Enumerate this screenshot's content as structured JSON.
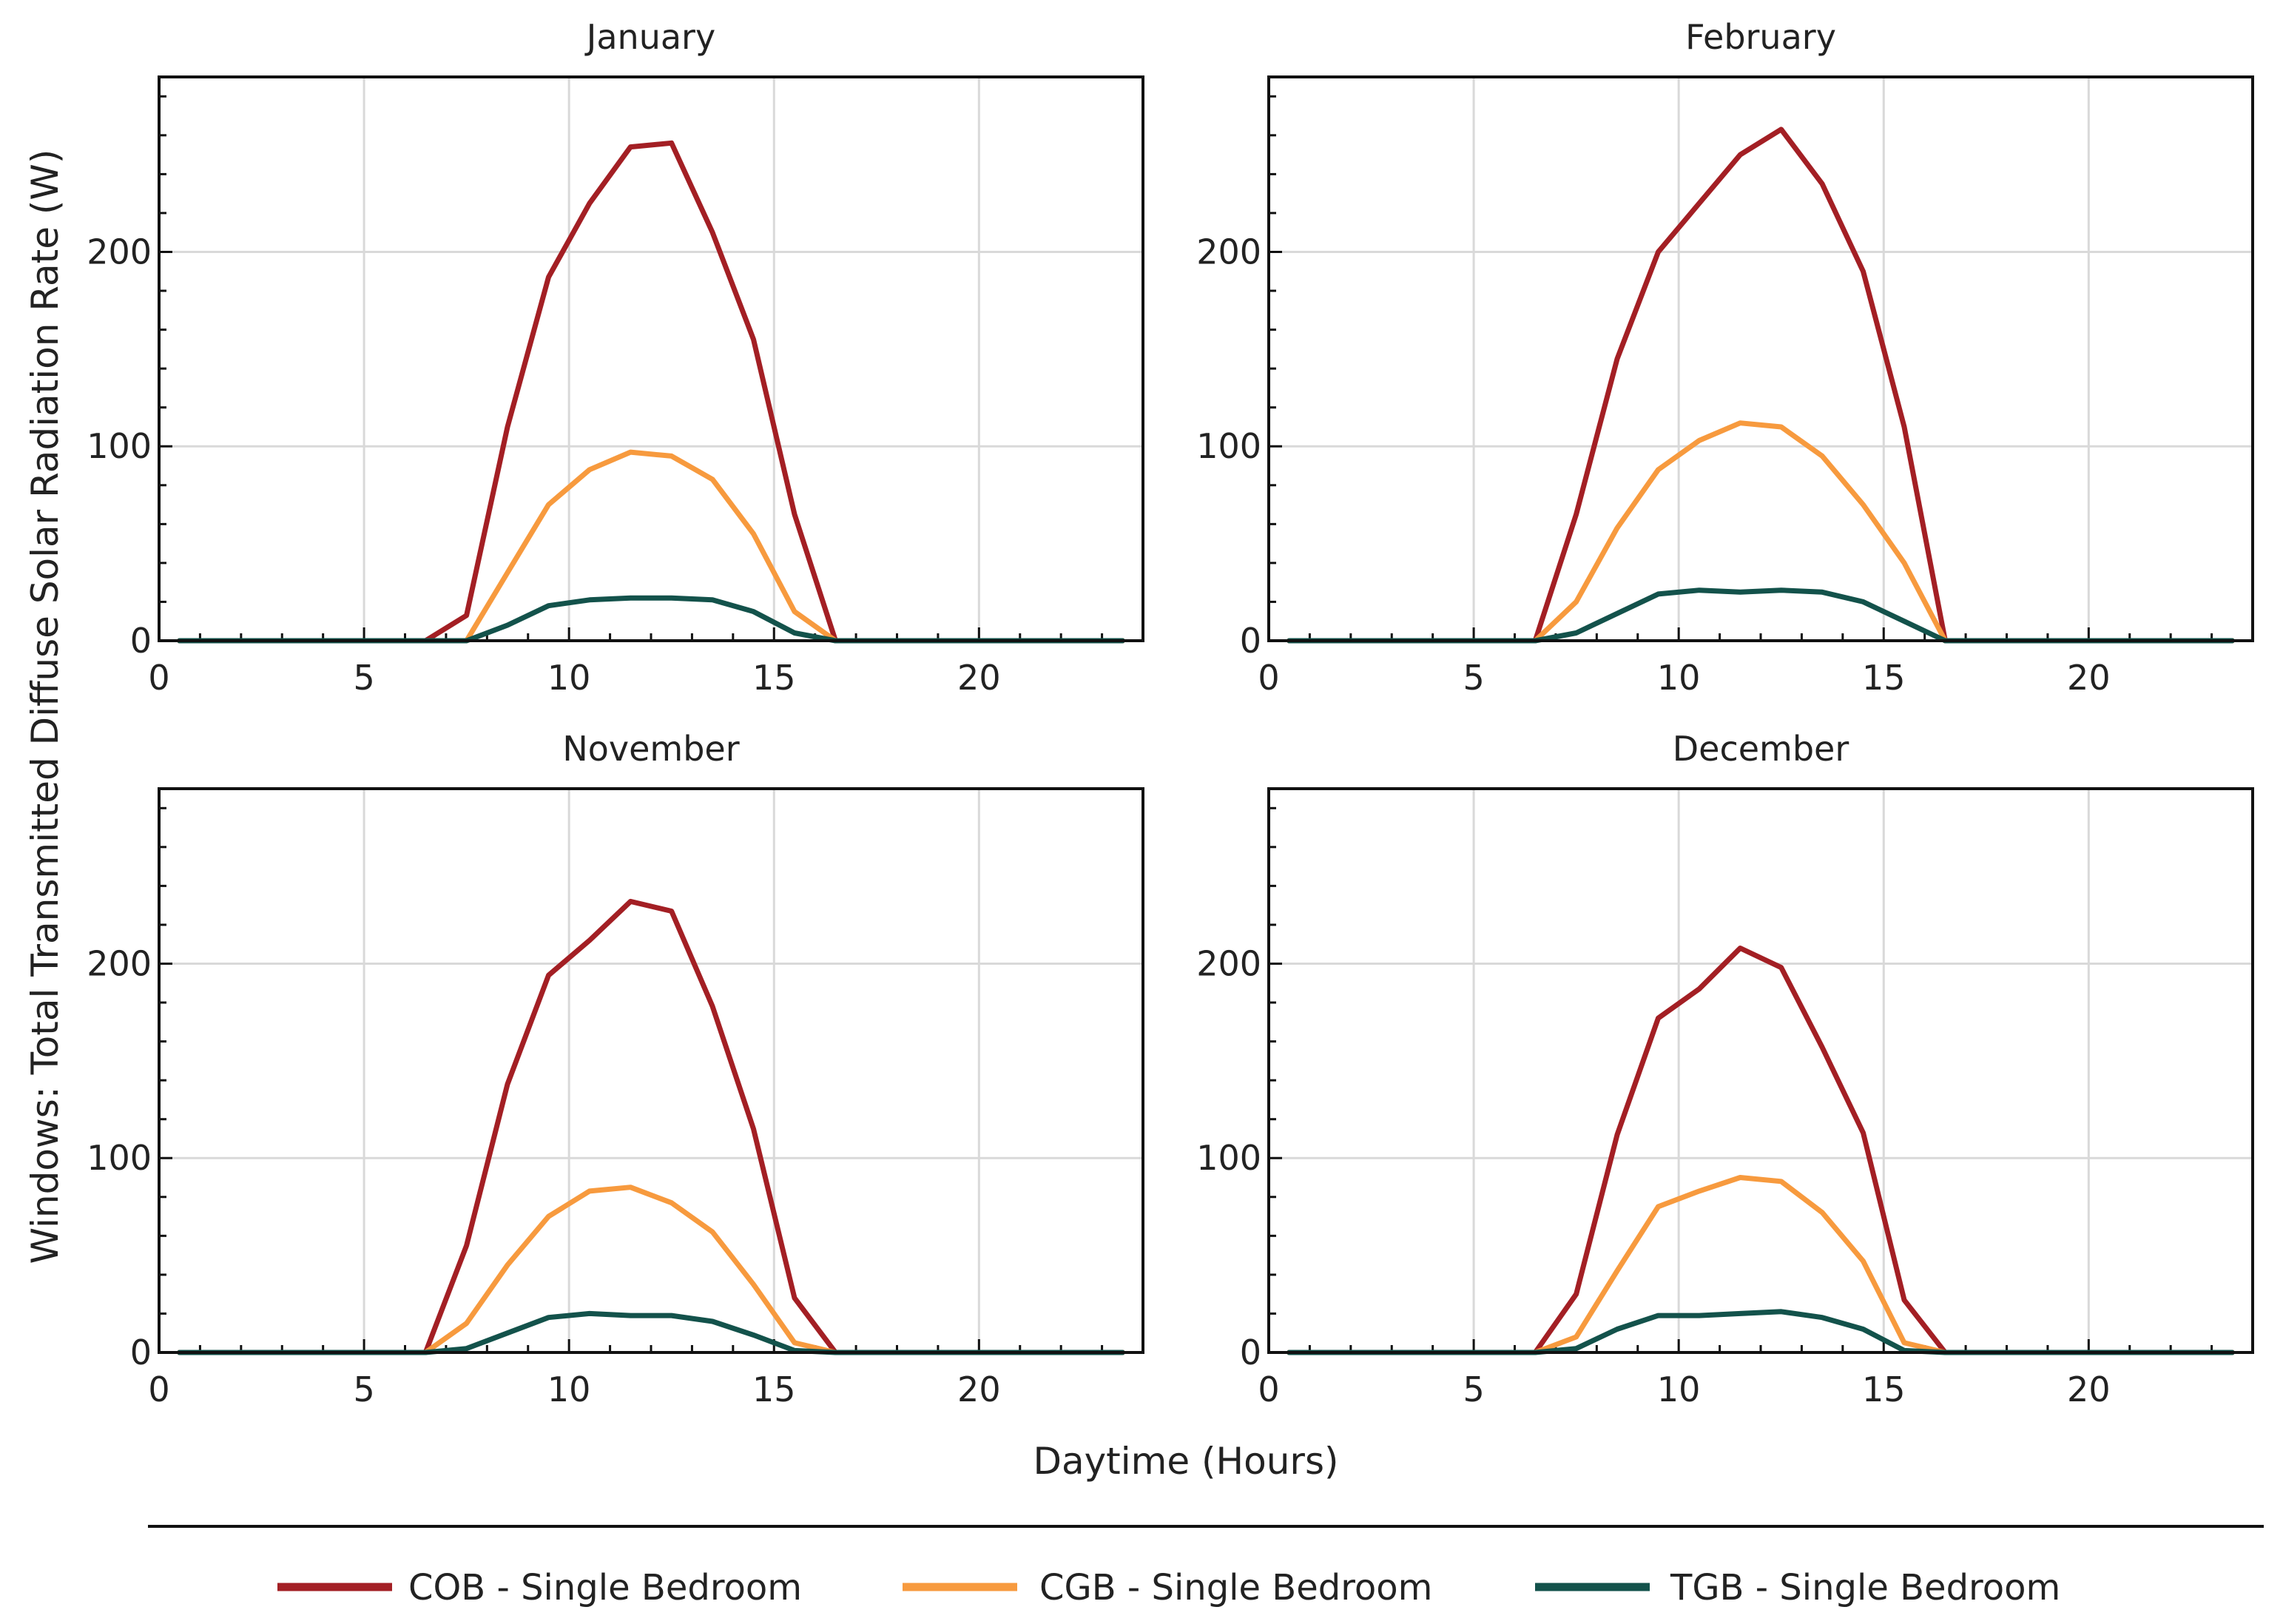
{
  "colors": {
    "COB": "#a31f24",
    "CGB": "#f79a3e",
    "TGB": "#13524b"
  },
  "figure": {
    "ylabel": "Windows: Total Transmitted Diffuse Solar Radiation Rate (W)",
    "xlabel": "Daytime (Hours)",
    "legend": [
      {
        "key": "COB",
        "label": "COB - Single Bedroom"
      },
      {
        "key": "CGB",
        "label": "CGB - Single Bedroom"
      },
      {
        "key": "TGB",
        "label": "TGB - Single Bedroom"
      }
    ]
  },
  "chart_data": [
    {
      "type": "line",
      "title": "January",
      "xlabel": "Daytime (Hours)",
      "ylabel": "Windows: Total Transmitted Diffuse Solar Radiation Rate (W)",
      "xlim": [
        0,
        24
      ],
      "ylim": [
        0,
        290
      ],
      "xticks": [
        0,
        5,
        10,
        15,
        20
      ],
      "yticks": [
        0,
        100,
        200
      ],
      "x": [
        0.5,
        1.5,
        2.5,
        3.5,
        4.5,
        5.5,
        6.5,
        7.5,
        8.5,
        9.5,
        10.5,
        11.5,
        12.5,
        13.5,
        14.5,
        15.5,
        16.5,
        17.5,
        18.5,
        19.5,
        20.5,
        21.5,
        22.5,
        23.5
      ],
      "series": [
        {
          "name": "COB - Single Bedroom",
          "key": "COB",
          "values": [
            0,
            0,
            0,
            0,
            0,
            0,
            0,
            13,
            110,
            187,
            225,
            254,
            256,
            210,
            155,
            65,
            0,
            0,
            0,
            0,
            0,
            0,
            0,
            0
          ]
        },
        {
          "name": "CGB - Single Bedroom",
          "key": "CGB",
          "values": [
            0,
            0,
            0,
            0,
            0,
            0,
            0,
            0,
            35,
            70,
            88,
            97,
            95,
            83,
            55,
            15,
            0,
            0,
            0,
            0,
            0,
            0,
            0,
            0
          ]
        },
        {
          "name": "TGB - Single Bedroom",
          "key": "TGB",
          "values": [
            0,
            0,
            0,
            0,
            0,
            0,
            0,
            0,
            8,
            18,
            21,
            22,
            22,
            21,
            15,
            4,
            0,
            0,
            0,
            0,
            0,
            0,
            0,
            0
          ]
        }
      ]
    },
    {
      "type": "line",
      "title": "February",
      "xlabel": "Daytime (Hours)",
      "ylabel": "Windows: Total Transmitted Diffuse Solar Radiation Rate (W)",
      "xlim": [
        0,
        24
      ],
      "ylim": [
        0,
        290
      ],
      "xticks": [
        0,
        5,
        10,
        15,
        20
      ],
      "yticks": [
        0,
        100,
        200
      ],
      "x": [
        0.5,
        1.5,
        2.5,
        3.5,
        4.5,
        5.5,
        6.5,
        7.5,
        8.5,
        9.5,
        10.5,
        11.5,
        12.5,
        13.5,
        14.5,
        15.5,
        16.5,
        17.5,
        18.5,
        19.5,
        20.5,
        21.5,
        22.5,
        23.5
      ],
      "series": [
        {
          "name": "COB - Single Bedroom",
          "key": "COB",
          "values": [
            0,
            0,
            0,
            0,
            0,
            0,
            0,
            65,
            145,
            200,
            225,
            250,
            263,
            235,
            190,
            110,
            0,
            0,
            0,
            0,
            0,
            0,
            0,
            0
          ]
        },
        {
          "name": "CGB - Single Bedroom",
          "key": "CGB",
          "values": [
            0,
            0,
            0,
            0,
            0,
            0,
            0,
            20,
            58,
            88,
            103,
            112,
            110,
            95,
            70,
            40,
            0,
            0,
            0,
            0,
            0,
            0,
            0,
            0
          ]
        },
        {
          "name": "TGB - Single Bedroom",
          "key": "TGB",
          "values": [
            0,
            0,
            0,
            0,
            0,
            0,
            0,
            4,
            14,
            24,
            26,
            25,
            26,
            25,
            20,
            10,
            0,
            0,
            0,
            0,
            0,
            0,
            0,
            0
          ]
        }
      ]
    },
    {
      "type": "line",
      "title": "November",
      "xlabel": "Daytime (Hours)",
      "ylabel": "Windows: Total Transmitted Diffuse Solar Radiation Rate (W)",
      "xlim": [
        0,
        24
      ],
      "ylim": [
        0,
        290
      ],
      "xticks": [
        0,
        5,
        10,
        15,
        20
      ],
      "yticks": [
        0,
        100,
        200
      ],
      "x": [
        0.5,
        1.5,
        2.5,
        3.5,
        4.5,
        5.5,
        6.5,
        7.5,
        8.5,
        9.5,
        10.5,
        11.5,
        12.5,
        13.5,
        14.5,
        15.5,
        16.5,
        17.5,
        18.5,
        19.5,
        20.5,
        21.5,
        22.5,
        23.5
      ],
      "series": [
        {
          "name": "COB - Single Bedroom",
          "key": "COB",
          "values": [
            0,
            0,
            0,
            0,
            0,
            0,
            0,
            55,
            138,
            194,
            212,
            232,
            227,
            178,
            115,
            28,
            0,
            0,
            0,
            0,
            0,
            0,
            0,
            0
          ]
        },
        {
          "name": "CGB - Single Bedroom",
          "key": "CGB",
          "values": [
            0,
            0,
            0,
            0,
            0,
            0,
            0,
            15,
            45,
            70,
            83,
            85,
            77,
            62,
            35,
            5,
            0,
            0,
            0,
            0,
            0,
            0,
            0,
            0
          ]
        },
        {
          "name": "TGB - Single Bedroom",
          "key": "TGB",
          "values": [
            0,
            0,
            0,
            0,
            0,
            0,
            0,
            2,
            10,
            18,
            20,
            19,
            19,
            16,
            9,
            1,
            0,
            0,
            0,
            0,
            0,
            0,
            0,
            0
          ]
        }
      ]
    },
    {
      "type": "line",
      "title": "December",
      "xlabel": "Daytime (Hours)",
      "ylabel": "Windows: Total Transmitted Diffuse Solar Radiation Rate (W)",
      "xlim": [
        0,
        24
      ],
      "ylim": [
        0,
        290
      ],
      "xticks": [
        0,
        5,
        10,
        15,
        20
      ],
      "yticks": [
        0,
        100,
        200
      ],
      "x": [
        0.5,
        1.5,
        2.5,
        3.5,
        4.5,
        5.5,
        6.5,
        7.5,
        8.5,
        9.5,
        10.5,
        11.5,
        12.5,
        13.5,
        14.5,
        15.5,
        16.5,
        17.5,
        18.5,
        19.5,
        20.5,
        21.5,
        22.5,
        23.5
      ],
      "series": [
        {
          "name": "COB - Single Bedroom",
          "key": "COB",
          "values": [
            0,
            0,
            0,
            0,
            0,
            0,
            0,
            30,
            112,
            172,
            187,
            208,
            198,
            157,
            113,
            27,
            0,
            0,
            0,
            0,
            0,
            0,
            0,
            0
          ]
        },
        {
          "name": "CGB - Single Bedroom",
          "key": "CGB",
          "values": [
            0,
            0,
            0,
            0,
            0,
            0,
            0,
            8,
            42,
            75,
            83,
            90,
            88,
            72,
            47,
            5,
            0,
            0,
            0,
            0,
            0,
            0,
            0,
            0
          ]
        },
        {
          "name": "TGB - Single Bedroom",
          "key": "TGB",
          "values": [
            0,
            0,
            0,
            0,
            0,
            0,
            0,
            2,
            12,
            19,
            19,
            20,
            21,
            18,
            12,
            1,
            0,
            0,
            0,
            0,
            0,
            0,
            0,
            0
          ]
        }
      ]
    }
  ]
}
